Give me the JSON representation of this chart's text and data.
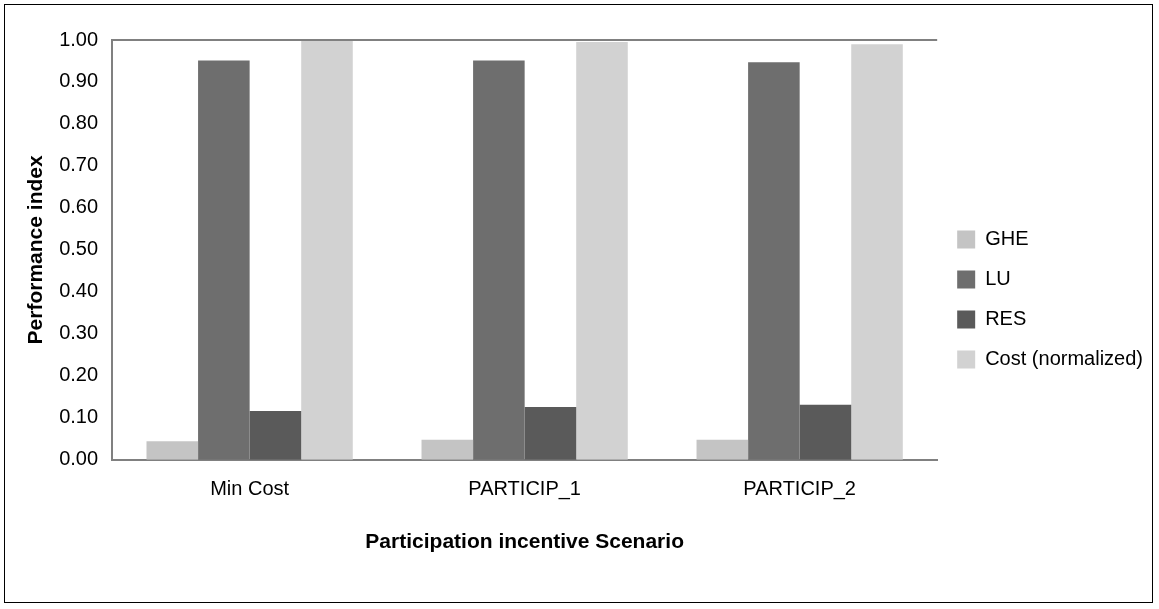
{
  "chart_data": {
    "type": "bar",
    "xlabel": "Participation incentive Scenario",
    "ylabel": "Performance index",
    "categories": [
      "Min Cost",
      "PARTICIP_1",
      "PARTICIP_2"
    ],
    "series": [
      {
        "name": "GHE",
        "color": "#c4c4c4",
        "values": [
          0.044,
          0.048,
          0.048
        ]
      },
      {
        "name": "LU",
        "color": "#6e6e6e",
        "values": [
          0.951,
          0.951,
          0.947
        ]
      },
      {
        "name": "RES",
        "color": "#5a5a5a",
        "values": [
          0.116,
          0.126,
          0.131
        ]
      },
      {
        "name": "Cost (normalized)",
        "color": "#d2d2d2",
        "values": [
          1.0,
          0.995,
          0.99
        ]
      }
    ],
    "ylim": [
      0,
      1
    ],
    "yticks": [
      {
        "value": 0,
        "label": "0.00"
      },
      {
        "value": 0.1,
        "label": "0.10"
      },
      {
        "value": 0.2,
        "label": "0.20"
      },
      {
        "value": 0.3,
        "label": "0.30"
      },
      {
        "value": 0.4,
        "label": "0.40"
      },
      {
        "value": 0.5,
        "label": "0.50"
      },
      {
        "value": 0.6,
        "label": "0.60"
      },
      {
        "value": 0.7,
        "label": "0.70"
      },
      {
        "value": 0.8,
        "label": "0.80"
      },
      {
        "value": 0.9,
        "label": "0.90"
      },
      {
        "value": 1,
        "label": "1.00"
      }
    ],
    "grid": false,
    "legend": "right"
  }
}
